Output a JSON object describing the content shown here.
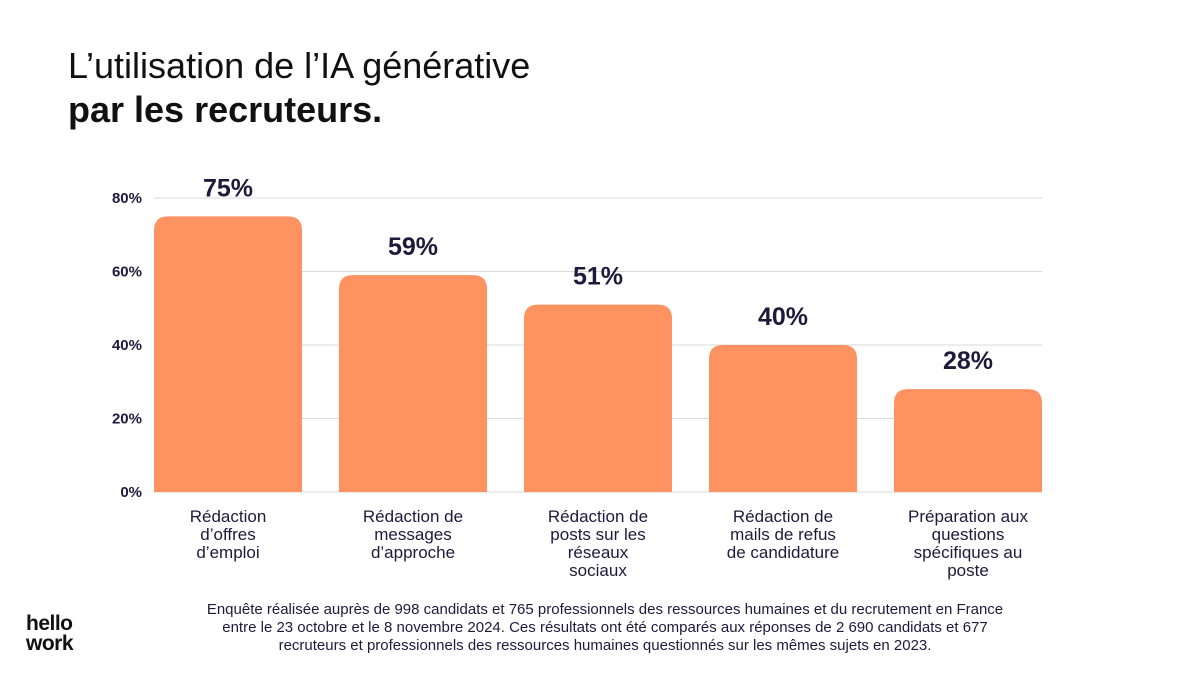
{
  "title": {
    "line1": "L’utilisation de l’IA générative",
    "line2": "par les recruteurs."
  },
  "chart_data": {
    "type": "bar",
    "categories": [
      [
        "Rédaction",
        "d’offres",
        "d’emploi"
      ],
      [
        "Rédaction de",
        "messages",
        "d’approche"
      ],
      [
        "Rédaction de",
        "posts sur les",
        "réseaux",
        "sociaux"
      ],
      [
        "Rédaction de",
        "mails de refus",
        "de candidature"
      ],
      [
        "Préparation aux",
        "questions",
        "spécifiques au",
        "poste"
      ]
    ],
    "values": [
      75,
      59,
      51,
      40,
      28
    ],
    "value_labels": [
      "75%",
      "59%",
      "51%",
      "40%",
      "28%"
    ],
    "yticks": [
      "0%",
      "20%",
      "40%",
      "60%",
      "80%"
    ],
    "ytick_values": [
      0,
      20,
      40,
      60,
      80
    ],
    "ylim": [
      0,
      80
    ],
    "grid": true,
    "bar_color": "#ff9261",
    "grid_color": "#d9d9d9",
    "text_color": "#1e1a3c"
  },
  "footnote": [
    "Enquête réalisée auprès de 998 candidats et 765 professionnels des ressources humaines et du recrutement en France",
    "entre le 23 octobre et le 8 novembre 2024. Ces résultats ont été comparés aux réponses de 2 690 candidats et 677",
    "recruteurs et professionnels des ressources humaines questionnés sur les mêmes sujets en 2023."
  ],
  "logo": {
    "line1": "hello",
    "line2": "work"
  }
}
